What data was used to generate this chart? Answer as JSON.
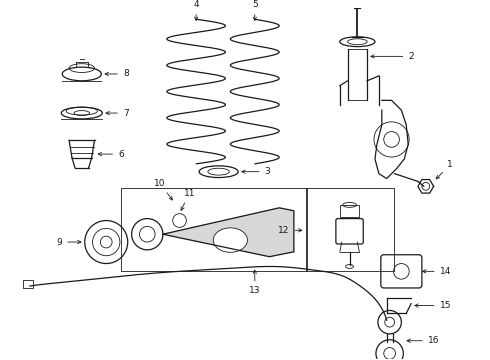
{
  "background_color": "#ffffff",
  "line_color": "#1a1a1a",
  "figure_width": 4.9,
  "figure_height": 3.6,
  "dpi": 100,
  "lw_thin": 0.6,
  "lw_med": 0.9,
  "lw_thick": 1.3,
  "font_size": 6.5,
  "arrow_lw": 0.6
}
